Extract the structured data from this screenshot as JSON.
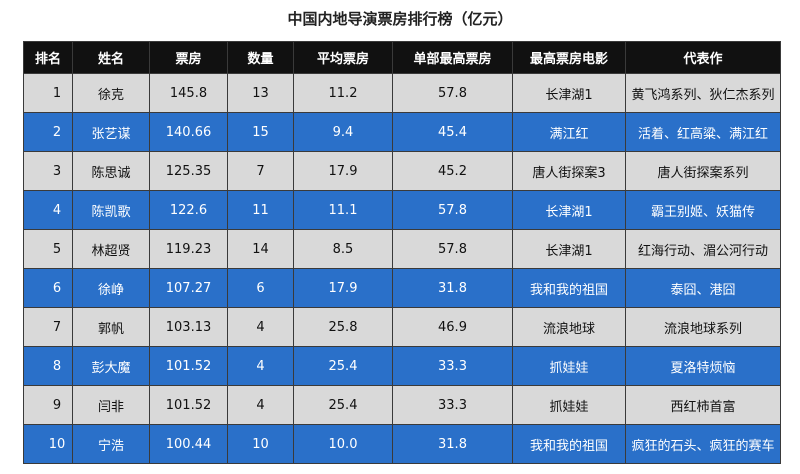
{
  "title": "中国内地导演票房排行榜（亿元）",
  "colors": {
    "header_bg": "#111111",
    "odd_row_bg": "#d9d9d9",
    "even_row_bg": "#2a70c9",
    "even_row_text": "#ffffff"
  },
  "chart_data": {
    "type": "table",
    "title": "中国内地导演票房排行榜（亿元）",
    "columns": [
      "排名",
      "姓名",
      "票房",
      "数量",
      "平均票房",
      "单部最高票房",
      "最高票房电影",
      "代表作"
    ],
    "rows": [
      [
        "1",
        "徐克",
        "145.8",
        "13",
        "11.2",
        "57.8",
        "长津湖1",
        "黄飞鸿系列、狄仁杰系列"
      ],
      [
        "2",
        "张艺谋",
        "140.66",
        "15",
        "9.4",
        "45.4",
        "满江红",
        "活着、红高粱、满江红"
      ],
      [
        "3",
        "陈思诚",
        "125.35",
        "7",
        "17.9",
        "45.2",
        "唐人街探案3",
        "唐人街探案系列"
      ],
      [
        "4",
        "陈凯歌",
        "122.6",
        "11",
        "11.1",
        "57.8",
        "长津湖1",
        "霸王别姬、妖猫传"
      ],
      [
        "5",
        "林超贤",
        "119.23",
        "14",
        "8.5",
        "57.8",
        "长津湖1",
        "红海行动、湄公河行动"
      ],
      [
        "6",
        "徐峥",
        "107.27",
        "6",
        "17.9",
        "31.8",
        "我和我的祖国",
        "泰囧、港囧"
      ],
      [
        "7",
        "郭帆",
        "103.13",
        "4",
        "25.8",
        "46.9",
        "流浪地球",
        "流浪地球系列"
      ],
      [
        "8",
        "彭大魔",
        "101.52",
        "4",
        "25.4",
        "33.3",
        "抓娃娃",
        "夏洛特烦恼"
      ],
      [
        "9",
        "闫非",
        "101.52",
        "4",
        "25.4",
        "33.3",
        "抓娃娃",
        "西红柿首富"
      ],
      [
        "10",
        "宁浩",
        "100.44",
        "10",
        "10.0",
        "31.8",
        "我和我的祖国",
        "疯狂的石头、疯狂的赛车"
      ]
    ]
  }
}
